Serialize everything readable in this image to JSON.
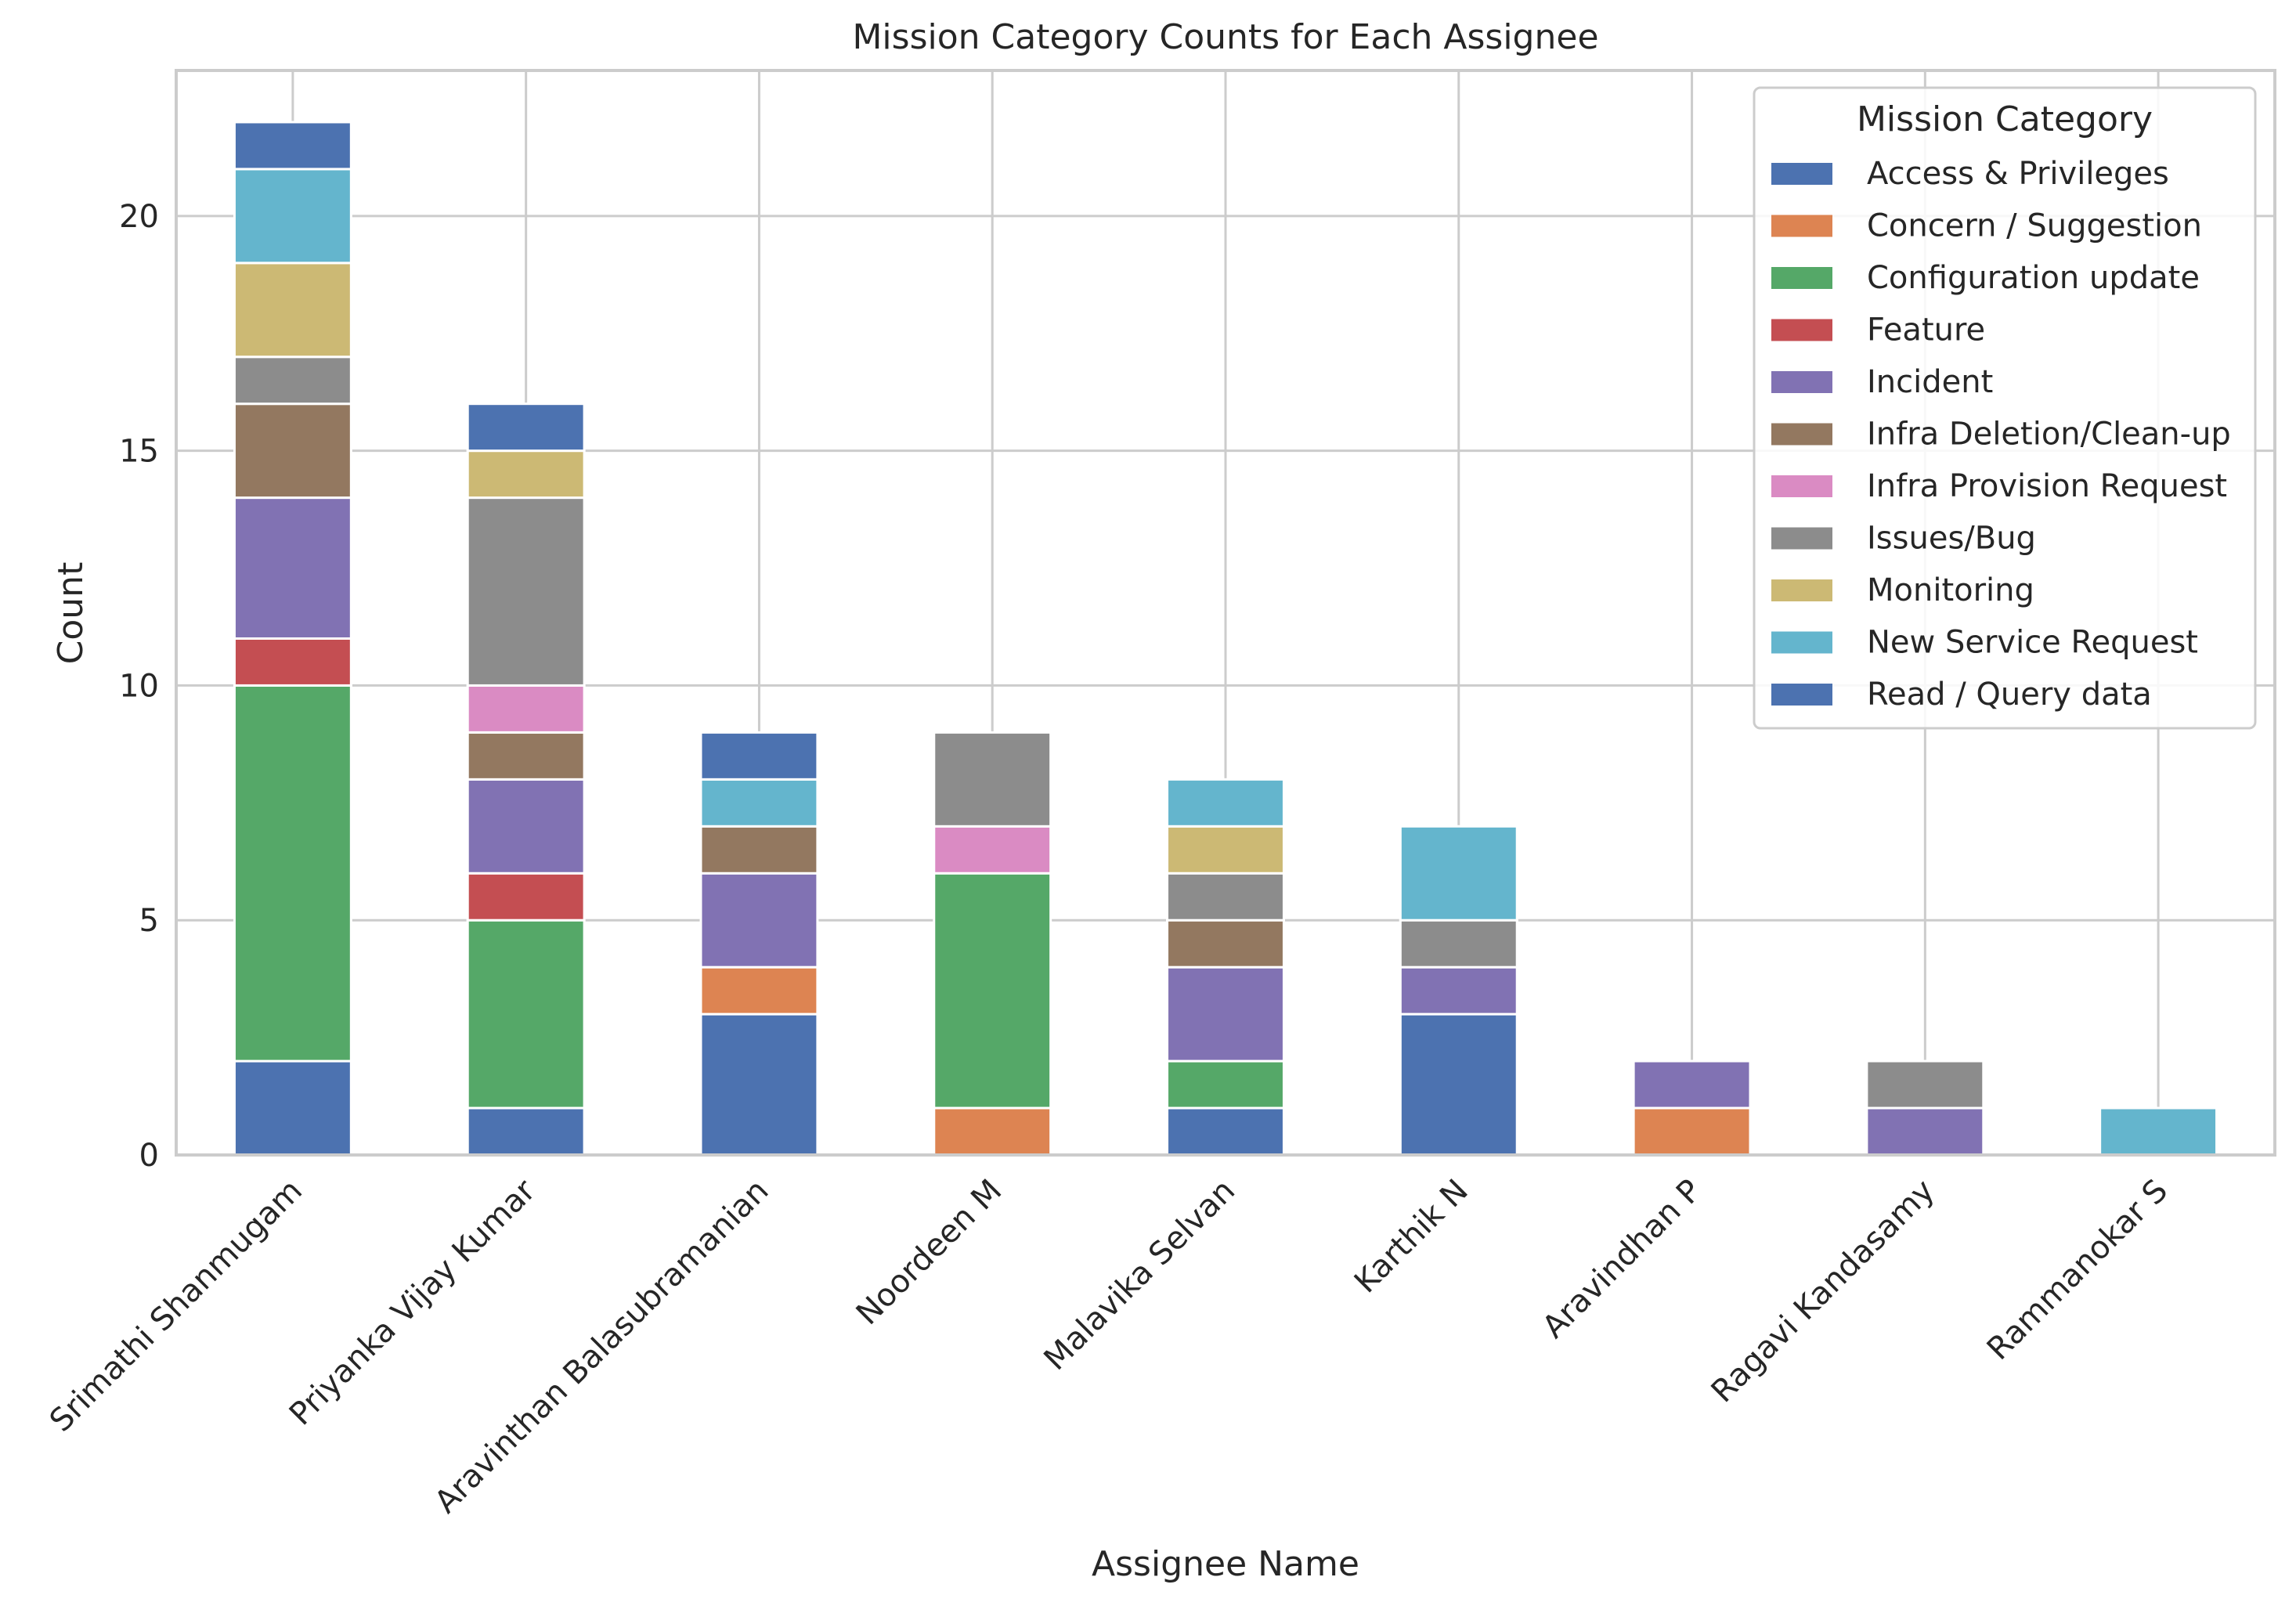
{
  "chart_data": {
    "type": "bar",
    "stacked": true,
    "title": "Mission Category Counts for Each Assignee",
    "xlabel": "Assignee Name",
    "ylabel": "Count",
    "ylim": [
      0,
      23.1
    ],
    "yticks": [
      0,
      5,
      10,
      15,
      20
    ],
    "grid": true,
    "legend": {
      "title": "Mission Category",
      "position": "top-right"
    },
    "categories": [
      "Srimathi Shanmugam",
      "Priyanka Vijay Kumar",
      "Aravinthan Balasubramanian",
      "Noordeen M",
      "Malavika Selvan",
      "Karthik N",
      "Aravindhan P",
      "Ragavi Kandasamy",
      "Rammanokar S"
    ],
    "series": [
      {
        "name": "Access & Privileges",
        "color": "#4c72b0",
        "values": [
          2,
          1,
          3,
          0,
          1,
          3,
          0,
          0,
          0
        ]
      },
      {
        "name": "Concern / Suggestion",
        "color": "#dd8452",
        "values": [
          0,
          0,
          1,
          1,
          0,
          0,
          1,
          0,
          0
        ]
      },
      {
        "name": "Configuration update",
        "color": "#55a868",
        "values": [
          8,
          4,
          0,
          5,
          1,
          0,
          0,
          0,
          0
        ]
      },
      {
        "name": "Feature",
        "color": "#c44e52",
        "values": [
          1,
          1,
          0,
          0,
          0,
          0,
          0,
          0,
          0
        ]
      },
      {
        "name": "Incident",
        "color": "#8172b3",
        "values": [
          3,
          2,
          2,
          0,
          2,
          1,
          1,
          1,
          0
        ]
      },
      {
        "name": "Infra Deletion/Clean-up",
        "color": "#937860",
        "values": [
          2,
          1,
          1,
          0,
          1,
          0,
          0,
          0,
          0
        ]
      },
      {
        "name": "Infra Provision Request",
        "color": "#da8bc3",
        "values": [
          0,
          1,
          0,
          1,
          0,
          0,
          0,
          0,
          0
        ]
      },
      {
        "name": "Issues/Bug",
        "color": "#8c8c8c",
        "values": [
          1,
          4,
          0,
          2,
          1,
          1,
          0,
          1,
          0
        ]
      },
      {
        "name": "Monitoring",
        "color": "#ccb974",
        "values": [
          2,
          1,
          0,
          0,
          1,
          0,
          0,
          0,
          0
        ]
      },
      {
        "name": "New Service Request",
        "color": "#64b5cd",
        "values": [
          2,
          0,
          1,
          0,
          1,
          2,
          0,
          0,
          1
        ]
      },
      {
        "name": "Read / Query data",
        "color": "#4c72b0",
        "values": [
          1,
          1,
          1,
          0,
          0,
          0,
          0,
          0,
          0
        ]
      }
    ]
  }
}
